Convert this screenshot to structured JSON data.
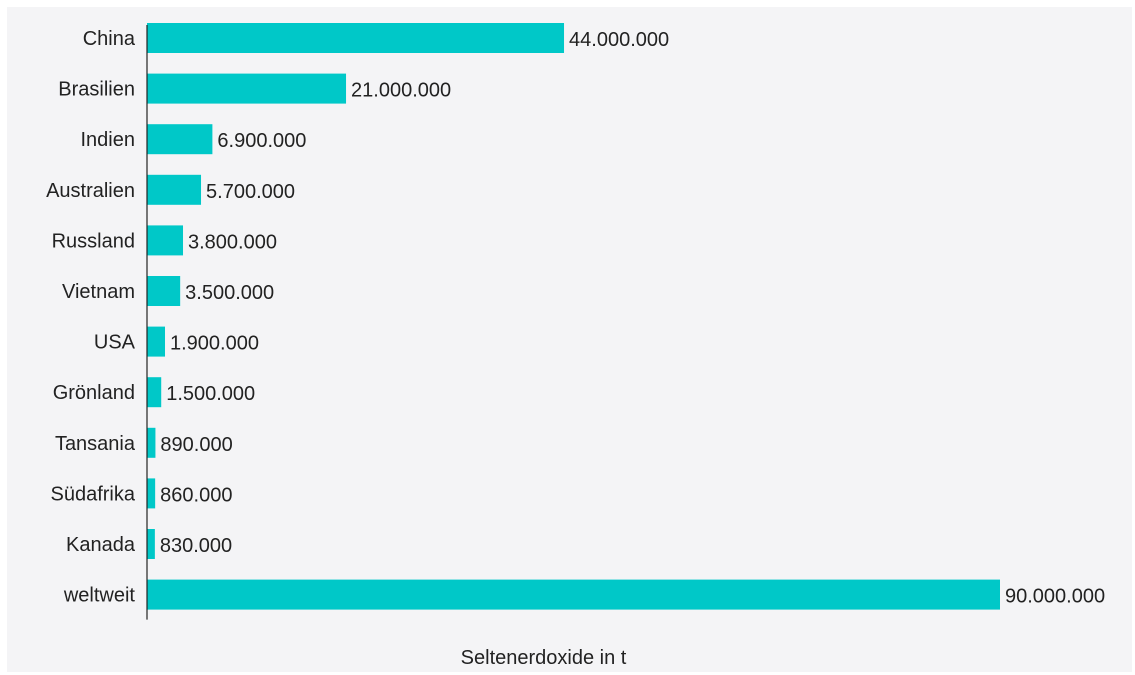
{
  "chart_data": {
    "type": "bar",
    "orientation": "horizontal",
    "categories": [
      "China",
      "Brasilien",
      "Indien",
      "Australien",
      "Russland",
      "Vietnam",
      "USA",
      "Grönland",
      "Tansania",
      "Südafrika",
      "Kanada",
      "weltweit"
    ],
    "values": [
      44000000,
      21000000,
      6900000,
      5700000,
      3800000,
      3500000,
      1900000,
      1500000,
      890000,
      860000,
      830000,
      90000000
    ],
    "value_labels": [
      "44.000.000",
      "21.000.000",
      "6.900.000",
      "5.700.000",
      "3.800.000",
      "3.500.000",
      "1.900.000",
      "1.500.000",
      "890.000",
      "860.000",
      "830.000",
      "90.000.000"
    ],
    "xlabel": "Seltenerdoxide in t",
    "ylabel": "",
    "xlim": [
      0,
      90000000
    ],
    "grid": false,
    "bar_color": "#00c8c8"
  }
}
